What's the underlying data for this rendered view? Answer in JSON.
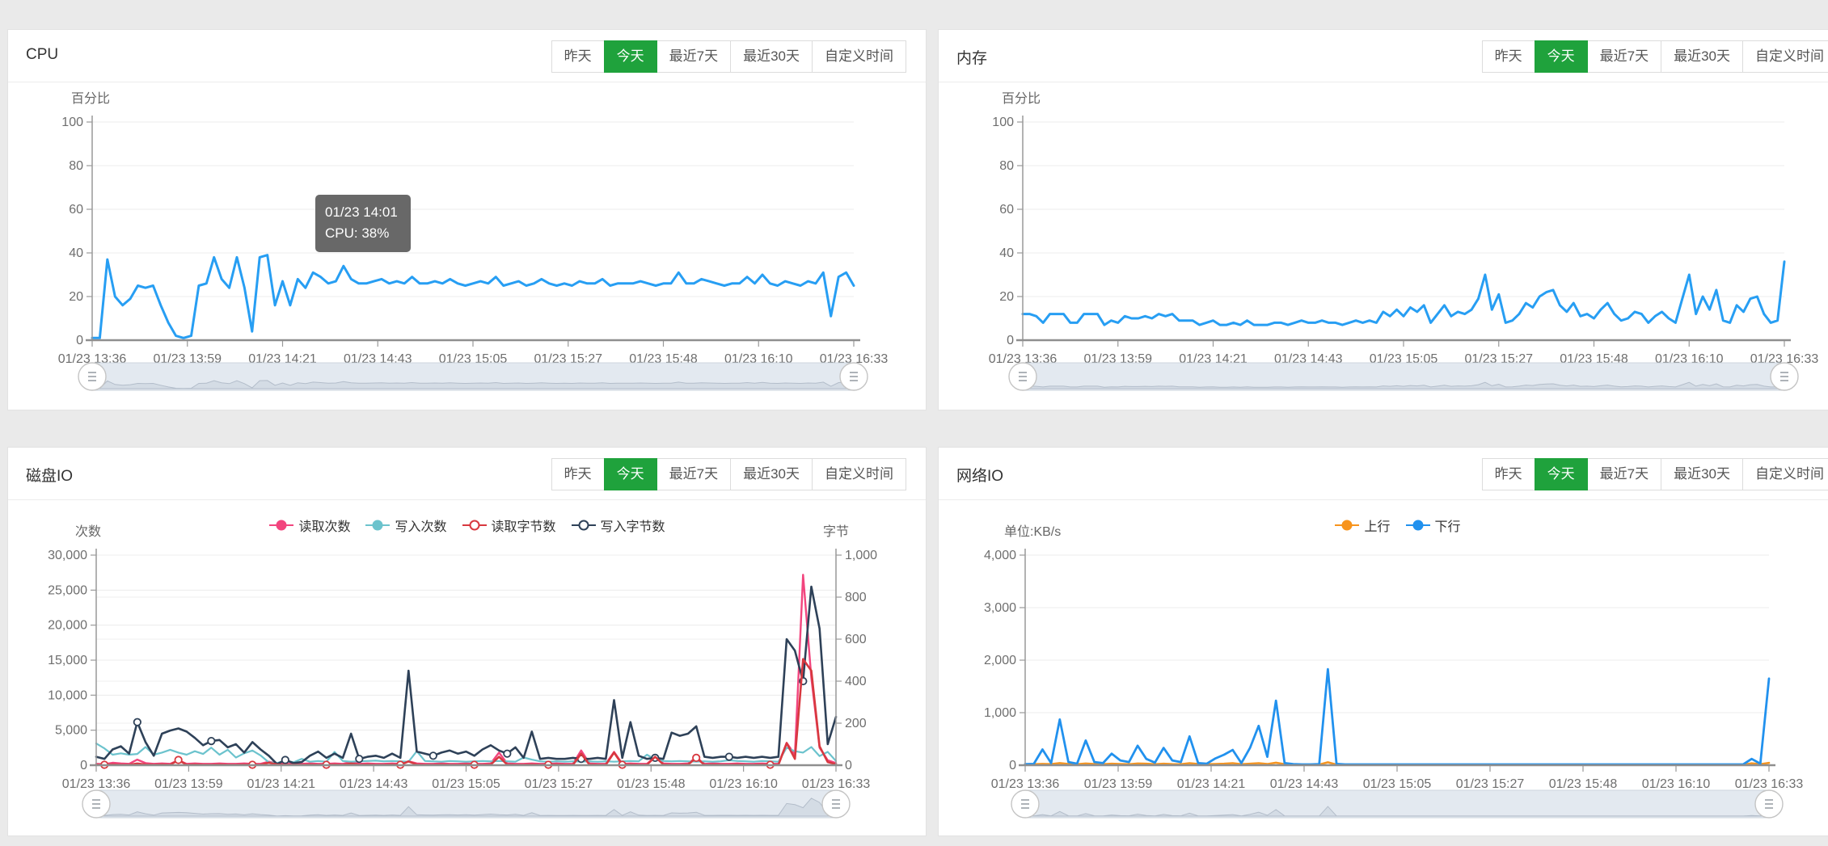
{
  "page": {
    "background": "#eaeaea"
  },
  "colors": {
    "accent_green": "#1fa23c",
    "line_blue": "#279ef3",
    "net_down_blue": "#2191ee",
    "net_up_orange": "#f7941d",
    "disk_read_count_pink": "#f2457e",
    "disk_write_count_teal": "#6cc3cd",
    "disk_read_bytes_red": "#d8383f",
    "disk_write_bytes_navy": "#2e4158",
    "tooltip_bg": "#5c5c5c",
    "datazoom_fill": "#e3e9f0"
  },
  "time_buttons": [
    "昨天",
    "今天",
    "最近7天",
    "最近30天",
    "自定义时间"
  ],
  "active_time_button": "今天",
  "x_labels": [
    "01/23 13:36",
    "01/23 13:59",
    "01/23 14:21",
    "01/23 14:43",
    "01/23 15:05",
    "01/23 15:27",
    "01/23 15:48",
    "01/23 16:10",
    "01/23 16:33"
  ],
  "panels": [
    {
      "title": "CPU"
    },
    {
      "title": "内存"
    },
    {
      "title": "磁盘IO"
    },
    {
      "title": "网络IO"
    }
  ],
  "chart_data": [
    {
      "type": "line",
      "title": "CPU",
      "ylabel": "百分比",
      "ylim": [
        0,
        100
      ],
      "yticks": [
        "0",
        "20",
        "40",
        "60",
        "80",
        "100"
      ],
      "legend_position": "none",
      "grid": true,
      "tooltip": {
        "line1": "01/23 14:01",
        "line2": "CPU: 38%"
      },
      "dz_series": 0,
      "series": [
        {
          "name": "CPU",
          "color": "#279ef3",
          "width": 3,
          "axis": "left",
          "values": [
            1,
            1,
            37,
            20,
            16,
            19,
            25,
            24,
            25,
            16,
            8,
            2,
            1,
            2,
            25,
            26,
            38,
            28,
            24,
            38,
            24,
            4,
            38,
            39,
            16,
            27,
            16,
            28,
            24,
            31,
            29,
            26,
            27,
            34,
            28,
            26,
            26,
            27,
            28,
            26,
            27,
            26,
            29,
            26,
            26,
            27,
            26,
            28,
            26,
            25,
            26,
            27,
            26,
            29,
            25,
            26,
            27,
            25,
            26,
            28,
            26,
            25,
            26,
            25,
            27,
            26,
            26,
            28,
            25,
            26,
            26,
            26,
            27,
            26,
            25,
            26,
            26,
            31,
            26,
            26,
            28,
            27,
            26,
            25,
            26,
            26,
            29,
            26,
            30,
            26,
            25,
            27,
            26,
            25,
            27,
            26,
            31,
            11,
            29,
            31,
            25
          ]
        }
      ]
    },
    {
      "type": "line",
      "title": "内存",
      "ylabel": "百分比",
      "ylim": [
        0,
        100
      ],
      "yticks": [
        "0",
        "20",
        "40",
        "60",
        "80",
        "100"
      ],
      "legend_position": "none",
      "grid": true,
      "dz_series": 0,
      "series": [
        {
          "name": "内存",
          "color": "#279ef3",
          "width": 3,
          "axis": "left",
          "values": [
            12,
            12,
            11,
            8,
            12,
            12,
            12,
            8,
            8,
            12,
            12,
            12,
            7,
            9,
            8,
            11,
            10,
            10,
            11,
            10,
            12,
            11,
            12,
            9,
            9,
            9,
            7,
            8,
            9,
            7,
            7,
            8,
            7,
            9,
            7,
            7,
            7,
            8,
            8,
            7,
            8,
            9,
            8,
            8,
            9,
            8,
            8,
            7,
            8,
            9,
            8,
            9,
            8,
            13,
            11,
            14,
            11,
            15,
            13,
            16,
            8,
            12,
            16,
            11,
            13,
            12,
            14,
            19,
            30,
            14,
            21,
            8,
            9,
            12,
            17,
            15,
            20,
            22,
            23,
            16,
            13,
            17,
            11,
            12,
            10,
            14,
            17,
            12,
            9,
            10,
            13,
            12,
            8,
            11,
            13,
            10,
            8,
            19,
            30,
            12,
            20,
            14,
            23,
            9,
            8,
            16,
            13,
            19,
            20,
            12,
            8,
            9,
            36
          ]
        }
      ]
    },
    {
      "type": "line",
      "title": "磁盘IO",
      "ylabel_left": "次数",
      "ylabel_right": "字节",
      "ylim_left": [
        0,
        30000
      ],
      "ylim_right": [
        0,
        1000
      ],
      "yticks_left": [
        "0",
        "5,000",
        "10,000",
        "15,000",
        "20,000",
        "25,000",
        "30,000"
      ],
      "yticks_right": [
        "0",
        "200",
        "400",
        "600",
        "800",
        "1,000"
      ],
      "legend_position": "top",
      "grid": true,
      "dz_series": 2,
      "legend": [
        {
          "label": "读取次数",
          "color": "#f2457e",
          "hollow": false
        },
        {
          "label": "写入次数",
          "color": "#6cc3cd",
          "hollow": false
        },
        {
          "label": "读取字节数",
          "color": "#d8383f",
          "hollow": true
        },
        {
          "label": "写入字节数",
          "color": "#2e4158",
          "hollow": true
        }
      ],
      "series": [
        {
          "name": "读取次数",
          "color": "#f2457e",
          "width": 2.4,
          "axis": "left",
          "values": [
            200,
            150,
            350,
            250,
            200,
            800,
            300,
            200,
            250,
            200,
            700,
            200,
            250,
            200,
            200,
            250,
            200,
            200,
            250,
            200,
            200,
            500,
            250,
            200,
            200,
            200,
            250,
            200,
            200,
            250,
            200,
            450,
            200,
            250,
            200,
            200,
            250,
            200,
            550,
            250,
            200,
            200,
            250,
            200,
            200,
            250,
            200,
            200,
            250,
            1800,
            250,
            200,
            200,
            250,
            200,
            200,
            250,
            200,
            200,
            2100,
            250,
            200,
            200,
            1900,
            200,
            250,
            200,
            200,
            1200,
            250,
            200,
            200,
            250,
            1100,
            200,
            250,
            200,
            200,
            250,
            200,
            200,
            250,
            200,
            200,
            3200,
            1500,
            27200,
            12500,
            2500,
            700,
            300
          ]
        },
        {
          "name": "写入次数",
          "color": "#6cc3cd",
          "width": 2.2,
          "axis": "left",
          "values": [
            3100,
            2400,
            1500,
            1700,
            1500,
            1600,
            2600,
            1500,
            1800,
            2200,
            1800,
            1500,
            2000,
            1600,
            2500,
            1500,
            2200,
            1100,
            1700,
            2100,
            1400,
            400,
            300,
            700,
            400,
            900,
            500,
            600,
            500,
            1900,
            600,
            500,
            550,
            600,
            650,
            550,
            600,
            550,
            500,
            2000,
            600,
            550,
            500,
            600,
            550,
            500,
            550,
            600,
            550,
            600,
            550,
            500,
            1100,
            800,
            550,
            500,
            550,
            500,
            550,
            500,
            550,
            500,
            550,
            500,
            550,
            600,
            550,
            1500,
            800,
            600,
            550,
            600,
            550,
            500,
            550,
            500,
            550,
            700,
            600,
            550,
            500,
            600,
            550,
            500,
            2500,
            2000,
            1800,
            2600,
            1300,
            1900,
            600
          ]
        },
        {
          "name": "写入字节数",
          "color": "#2e4158",
          "width": 2.6,
          "axis": "right",
          "markers": true,
          "marker_mod": 9,
          "marker_off": 5,
          "values": [
            40,
            30,
            75,
            90,
            55,
            205,
            110,
            45,
            150,
            165,
            175,
            160,
            130,
            95,
            115,
            120,
            85,
            100,
            60,
            110,
            75,
            45,
            5,
            25,
            10,
            15,
            45,
            65,
            35,
            55,
            35,
            150,
            30,
            40,
            45,
            35,
            55,
            35,
            450,
            65,
            55,
            45,
            60,
            70,
            55,
            65,
            45,
            75,
            95,
            70,
            55,
            85,
            35,
            160,
            30,
            35,
            30,
            30,
            35,
            30,
            30,
            35,
            30,
            310,
            35,
            205,
            45,
            30,
            35,
            30,
            155,
            140,
            150,
            185,
            40,
            35,
            40,
            40,
            35,
            40,
            35,
            40,
            35,
            40,
            600,
            545,
            400,
            850,
            650,
            100,
            230
          ]
        },
        {
          "name": "读取字节数",
          "color": "#d8383f",
          "width": 2.6,
          "axis": "right",
          "markers": true,
          "marker_mod": 9,
          "marker_off": 1,
          "values": [
            2,
            2,
            3,
            2,
            2,
            8,
            3,
            2,
            3,
            2,
            25,
            2,
            3,
            2,
            2,
            3,
            2,
            2,
            3,
            2,
            2,
            12,
            3,
            2,
            2,
            2,
            3,
            2,
            2,
            3,
            2,
            8,
            2,
            3,
            2,
            2,
            3,
            2,
            18,
            3,
            2,
            2,
            3,
            2,
            2,
            3,
            2,
            2,
            3,
            40,
            3,
            2,
            2,
            3,
            2,
            2,
            3,
            2,
            2,
            55,
            3,
            2,
            2,
            60,
            2,
            3,
            2,
            2,
            40,
            3,
            2,
            2,
            3,
            35,
            2,
            3,
            2,
            2,
            3,
            2,
            2,
            3,
            2,
            2,
            105,
            30,
            505,
            450,
            90,
            15,
            5
          ]
        }
      ]
    },
    {
      "type": "line",
      "title": "网络IO",
      "ylabel": "单位:KB/s",
      "ylim": [
        0,
        4000
      ],
      "yticks": [
        "0",
        "1,000",
        "2,000",
        "3,000",
        "4,000"
      ],
      "legend_position": "top",
      "grid": true,
      "dz_series": 1,
      "legend": [
        {
          "label": "上行",
          "color": "#f7941d",
          "hollow": false
        },
        {
          "label": "下行",
          "color": "#2191ee",
          "hollow": false
        }
      ],
      "series": [
        {
          "name": "上行",
          "color": "#f7941d",
          "width": 2.6,
          "axis": "left",
          "values": [
            15,
            18,
            25,
            20,
            40,
            22,
            18,
            32,
            22,
            18,
            28,
            22,
            18,
            32,
            28,
            18,
            28,
            20,
            18,
            38,
            22,
            18,
            22,
            28,
            38,
            18,
            28,
            38,
            22,
            48,
            18,
            12,
            10,
            10,
            12,
            55,
            12,
            10,
            10,
            10,
            10,
            10,
            10,
            10,
            10,
            10,
            10,
            10,
            10,
            10,
            10,
            10,
            10,
            10,
            10,
            10,
            10,
            10,
            10,
            10,
            10,
            10,
            10,
            10,
            10,
            10,
            10,
            10,
            10,
            10,
            10,
            10,
            10,
            10,
            10,
            10,
            10,
            10,
            10,
            10,
            10,
            10,
            10,
            10,
            35,
            18,
            45
          ]
        },
        {
          "name": "下行",
          "color": "#2191ee",
          "width": 2.8,
          "axis": "left",
          "values": [
            20,
            25,
            300,
            40,
            870,
            60,
            30,
            470,
            60,
            40,
            220,
            90,
            60,
            370,
            120,
            50,
            330,
            90,
            60,
            550,
            40,
            30,
            130,
            200,
            290,
            40,
            330,
            750,
            160,
            1230,
            40,
            20,
            15,
            15,
            20,
            1830,
            25,
            15,
            15,
            15,
            15,
            15,
            15,
            15,
            15,
            15,
            15,
            15,
            15,
            15,
            15,
            15,
            15,
            15,
            15,
            15,
            15,
            15,
            15,
            15,
            15,
            15,
            15,
            15,
            15,
            15,
            15,
            15,
            15,
            15,
            15,
            15,
            15,
            15,
            15,
            15,
            15,
            15,
            15,
            15,
            15,
            15,
            15,
            15,
            120,
            30,
            1650
          ]
        }
      ]
    }
  ]
}
